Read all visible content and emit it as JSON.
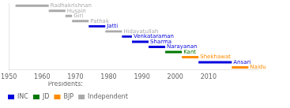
{
  "chart_data": {
    "type": "bar",
    "orientation": "horizontal",
    "categories": [
      "Radhakrishnan",
      "Husain",
      "Giri",
      "Pathak",
      "Jatti",
      "Hidayatullah",
      "Venkataraman",
      "Sharma",
      "Narayanan",
      "Kant",
      "Shekhawat",
      "Ansari",
      "Naidu"
    ],
    "series": [
      {
        "name": "INC",
        "color": "#0000dd",
        "values": [
          null,
          null,
          null,
          null,
          [
            1974,
            1979
          ],
          null,
          [
            1984,
            1987
          ],
          [
            1987,
            1992
          ],
          [
            1992,
            1997
          ],
          null,
          null,
          [
            2007,
            2017
          ],
          null
        ]
      },
      {
        "name": "JD",
        "color": "#007700",
        "values": [
          null,
          null,
          null,
          null,
          null,
          null,
          null,
          null,
          null,
          [
            1997,
            2002
          ],
          null,
          null,
          null
        ]
      },
      {
        "name": "BJP",
        "color": "#ff8c00",
        "values": [
          null,
          null,
          null,
          null,
          null,
          null,
          null,
          null,
          null,
          null,
          [
            2002,
            2007
          ],
          null,
          [
            2017,
            2022
          ]
        ]
      },
      {
        "name": "Independent",
        "color": "#aaaaaa",
        "values": [
          [
            1952,
            1962
          ],
          [
            1962,
            1967
          ],
          [
            1967,
            1969
          ],
          [
            1969,
            1974
          ],
          null,
          [
            1979,
            1984
          ],
          null,
          null,
          null,
          null,
          null,
          null,
          null
        ]
      }
    ],
    "xlim": [
      1950,
      2025
    ],
    "xticks": [
      1950,
      1960,
      1970,
      1980,
      1990,
      2000,
      2010
    ],
    "legend_title": "Presidents:",
    "legend": "bottom",
    "grid": false,
    "tick_labels": "x"
  }
}
